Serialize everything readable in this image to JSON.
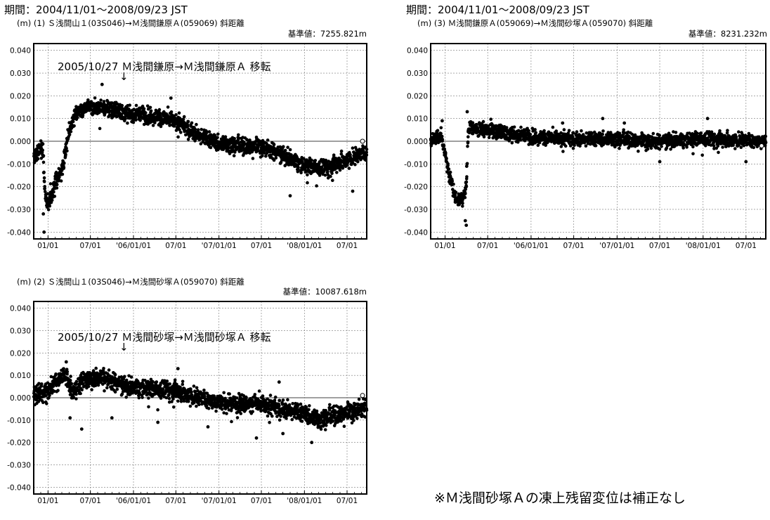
{
  "header": {
    "period_left": "期間：2004/11/01～2008/09/23 JST",
    "period_right": "期間：2004/11/01～2008/09/23 JST"
  },
  "footnote": "※Ｍ浅間砂塚Ａの凍上残留変位は補正なし",
  "chart_data": [
    {
      "type": "scatter",
      "id": "chart1",
      "subtitle": "(m) (1) Ｓ浅間山１(03S046)→Ｍ浅間鎌原Ａ(059069)  斜距離",
      "baseline_label": "基準値：7255.821m",
      "annotation": "2005/10/27 Ｍ浅間鎌原→Ｍ浅間鎌原Ａ 移転",
      "annotation_arrow": "↓",
      "annotation_date": "2005/10/27",
      "x_range": [
        "2004/11/01",
        "2008/09/23"
      ],
      "ylim": [
        -0.043,
        0.043
      ],
      "yticks": [
        0.04,
        0.03,
        0.02,
        0.01,
        0.0,
        -0.01,
        -0.02,
        -0.03,
        -0.04
      ],
      "ytick_labels": [
        "0.040",
        "0.030",
        "0.020",
        "0.010",
        "0.000",
        "-0.010",
        "-0.020",
        "-0.030",
        "-0.040"
      ],
      "xtick_dates": [
        "2005/01/01",
        "2005/07/01",
        "2006/01/01",
        "2006/07/01",
        "2007/01/01",
        "2007/07/01",
        "2008/01/01",
        "2008/07/01"
      ],
      "xtick_labels": [
        "01/01",
        "07/01",
        "'06/01/01",
        "07/01",
        "'07/01/01",
        "07/01",
        "'08/01/01",
        "07/01"
      ],
      "grid": true,
      "zero_line": true,
      "trend": [
        [
          "2004/11/01",
          -0.007
        ],
        [
          "2004/11/25",
          -0.004
        ],
        [
          "2004/12/10",
          -0.002
        ],
        [
          "2004/12/20",
          -0.025
        ],
        [
          "2005/01/05",
          -0.028
        ],
        [
          "2005/02/01",
          -0.018
        ],
        [
          "2005/03/01",
          -0.013
        ],
        [
          "2005/04/01",
          0.005
        ],
        [
          "2005/05/01",
          0.013
        ],
        [
          "2005/07/01",
          0.015
        ],
        [
          "2005/10/01",
          0.014
        ],
        [
          "2006/01/01",
          0.012
        ],
        [
          "2006/04/01",
          0.011
        ],
        [
          "2006/07/01",
          0.009
        ],
        [
          "2006/10/01",
          0.003
        ],
        [
          "2007/01/01",
          -0.001
        ],
        [
          "2007/04/01",
          -0.002
        ],
        [
          "2007/07/01",
          -0.002
        ],
        [
          "2007/10/01",
          -0.006
        ],
        [
          "2008/01/01",
          -0.011
        ],
        [
          "2008/04/01",
          -0.012
        ],
        [
          "2008/07/01",
          -0.008
        ],
        [
          "2008/09/23",
          -0.005
        ]
      ],
      "spread": 0.0025,
      "outliers": [
        [
          "2005/08/20",
          0.025
        ],
        [
          "2006/06/10",
          0.019
        ],
        [
          "2007/11/01",
          -0.024
        ],
        [
          "2004/12/15",
          -0.04
        ],
        [
          "2004/12/12",
          -0.032
        ],
        [
          "2008/07/25",
          -0.022
        ]
      ],
      "last_value": 0.0
    },
    {
      "type": "scatter",
      "id": "chart2",
      "subtitle": "(m) (2) Ｓ浅間山１(03S046)→Ｍ浅間砂塚Ａ(059070)  斜距離",
      "baseline_label": "基準値：10087.618m",
      "annotation": "2005/10/27 Ｍ浅間砂塚→Ｍ浅間砂塚Ａ 移転",
      "annotation_arrow": "↓",
      "annotation_date": "2005/10/27",
      "x_range": [
        "2004/11/01",
        "2008/09/23"
      ],
      "ylim": [
        -0.043,
        0.043
      ],
      "yticks": [
        0.04,
        0.03,
        0.02,
        0.01,
        0.0,
        -0.01,
        -0.02,
        -0.03,
        -0.04
      ],
      "ytick_labels": [
        "0.040",
        "0.030",
        "0.020",
        "0.010",
        "0.000",
        "-0.010",
        "-0.020",
        "-0.030",
        "-0.040"
      ],
      "xtick_dates": [
        "2005/01/01",
        "2005/07/01",
        "2006/01/01",
        "2006/07/01",
        "2007/01/01",
        "2007/07/01",
        "2008/01/01",
        "2008/07/01"
      ],
      "xtick_labels": [
        "01/01",
        "07/01",
        "'06/01/01",
        "07/01",
        "'07/01/01",
        "07/01",
        "'08/01/01",
        "07/01"
      ],
      "grid": true,
      "zero_line": true,
      "trend": [
        [
          "2004/11/01",
          0.001
        ],
        [
          "2005/01/01",
          0.003
        ],
        [
          "2005/03/15",
          0.011
        ],
        [
          "2005/04/15",
          0.002
        ],
        [
          "2005/06/01",
          0.008
        ],
        [
          "2005/09/01",
          0.009
        ],
        [
          "2005/12/01",
          0.005
        ],
        [
          "2006/03/01",
          0.004
        ],
        [
          "2006/07/01",
          0.003
        ],
        [
          "2006/10/01",
          0.0
        ],
        [
          "2007/01/01",
          -0.002
        ],
        [
          "2007/07/01",
          -0.003
        ],
        [
          "2008/01/01",
          -0.007
        ],
        [
          "2008/03/01",
          -0.01
        ],
        [
          "2008/06/01",
          -0.007
        ],
        [
          "2008/09/23",
          -0.004
        ]
      ],
      "spread": 0.0028,
      "outliers": [
        [
          "2005/05/25",
          -0.014
        ],
        [
          "2005/04/05",
          -0.009
        ],
        [
          "2006/04/15",
          -0.011
        ],
        [
          "2007/06/10",
          -0.018
        ],
        [
          "2007/10/01",
          -0.016
        ],
        [
          "2008/02/01",
          -0.02
        ],
        [
          "2007/09/15",
          0.007
        ],
        [
          "2006/07/10",
          0.013
        ],
        [
          "2005/03/20",
          0.016
        ],
        [
          "2005/10/01",
          -0.009
        ],
        [
          "2006/11/15",
          -0.013
        ]
      ],
      "last_value": 0.001
    },
    {
      "type": "scatter",
      "id": "chart3",
      "subtitle": "(m) (3) Ｍ浅間鎌原Ａ(059069)→Ｍ浅間砂塚Ａ(059070)  斜距離",
      "baseline_label": "基準値：8231.232m",
      "x_range": [
        "2004/11/01",
        "2008/09/23"
      ],
      "ylim": [
        -0.043,
        0.043
      ],
      "yticks": [
        0.04,
        0.03,
        0.02,
        0.01,
        0.0,
        -0.01,
        -0.02,
        -0.03,
        -0.04
      ],
      "ytick_labels": [
        "0.040",
        "0.030",
        "0.020",
        "0.010",
        "0.000",
        "-0.010",
        "-0.020",
        "-0.030",
        "-0.040"
      ],
      "xtick_dates": [
        "2005/01/01",
        "2005/07/01",
        "2006/01/01",
        "2006/07/01",
        "2007/01/01",
        "2007/07/01",
        "2008/01/01",
        "2008/07/01"
      ],
      "xtick_labels": [
        "01/01",
        "07/01",
        "'06/01/01",
        "07/01",
        "'07/01/01",
        "07/01",
        "'08/01/01",
        "07/01"
      ],
      "grid": true,
      "zero_line": true,
      "trend": [
        [
          "2004/11/01",
          0.001
        ],
        [
          "2004/12/15",
          0.002
        ],
        [
          "2005/01/01",
          -0.005
        ],
        [
          "2005/01/20",
          -0.015
        ],
        [
          "2005/02/15",
          -0.025
        ],
        [
          "2005/03/15",
          -0.026
        ],
        [
          "2005/04/01",
          -0.02
        ],
        [
          "2005/04/10",
          0.006
        ],
        [
          "2005/06/01",
          0.005
        ],
        [
          "2005/09/01",
          0.004
        ],
        [
          "2006/01/01",
          0.002
        ],
        [
          "2006/07/01",
          0.001
        ],
        [
          "2007/01/01",
          0.001
        ],
        [
          "2007/07/01",
          0.0
        ],
        [
          "2008/01/01",
          0.001
        ],
        [
          "2008/09/23",
          0.0
        ]
      ],
      "spread": 0.0022,
      "outliers": [
        [
          "2005/04/01",
          -0.037
        ],
        [
          "2005/03/28",
          -0.035
        ],
        [
          "2005/04/03",
          -0.011
        ],
        [
          "2004/12/20",
          0.009
        ],
        [
          "2005/04/05",
          0.013
        ],
        [
          "2006/05/15",
          0.008
        ],
        [
          "2006/11/01",
          0.01
        ],
        [
          "2007/02/01",
          0.008
        ],
        [
          "2007/07/01",
          -0.009
        ],
        [
          "2008/07/01",
          -0.009
        ],
        [
          "2008/01/20",
          0.01
        ]
      ],
      "last_value": -0.002
    }
  ]
}
